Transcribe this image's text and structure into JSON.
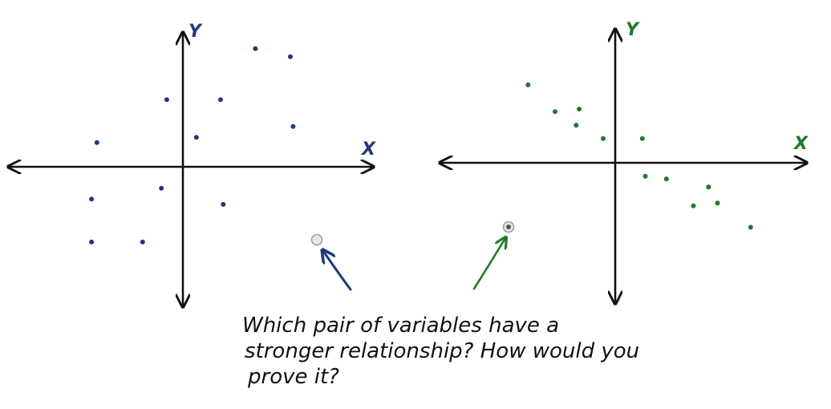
{
  "chart_data": [
    {
      "type": "scatter",
      "xlabel": "X",
      "ylabel": "Y",
      "color": "#1f3a7a",
      "xlim": [
        -6,
        6
      ],
      "ylim": [
        -4.6,
        4.6
      ],
      "points": [
        {
          "x": -3.2,
          "y": 0.9
        },
        {
          "x": -0.6,
          "y": 2.5
        },
        {
          "x": 1.4,
          "y": 2.5
        },
        {
          "x": 2.7,
          "y": 4.4
        },
        {
          "x": 4.0,
          "y": 4.1
        },
        {
          "x": 0.5,
          "y": 1.1
        },
        {
          "x": 4.1,
          "y": 1.5
        },
        {
          "x": -0.8,
          "y": -0.8
        },
        {
          "x": -3.4,
          "y": -1.2
        },
        {
          "x": 1.5,
          "y": -1.4
        },
        {
          "x": -3.4,
          "y": -2.8
        },
        {
          "x": -1.5,
          "y": -2.8
        }
      ]
    },
    {
      "type": "scatter",
      "xlabel": "X",
      "ylabel": "Y",
      "color": "#1e7a2a",
      "xlim": [
        -6,
        6
      ],
      "ylim": [
        -4.6,
        4.6
      ],
      "points": [
        {
          "x": -2.9,
          "y": 2.9
        },
        {
          "x": -2.0,
          "y": 1.9
        },
        {
          "x": -1.2,
          "y": 2.0
        },
        {
          "x": -1.3,
          "y": 1.4
        },
        {
          "x": -0.4,
          "y": 0.9
        },
        {
          "x": 0.9,
          "y": 0.9
        },
        {
          "x": 1.0,
          "y": -0.5
        },
        {
          "x": 1.7,
          "y": -0.6
        },
        {
          "x": 3.1,
          "y": -0.9
        },
        {
          "x": 2.6,
          "y": -1.6
        },
        {
          "x": 3.4,
          "y": -1.5
        },
        {
          "x": 4.5,
          "y": -2.4
        }
      ]
    }
  ],
  "question": {
    "lines": [
      "Which pair of variables have a",
      "stronger relationship? How would you",
      "prove it?"
    ]
  },
  "options": [
    {
      "selected": false,
      "arrow_color": "#1f3a7a"
    },
    {
      "selected": true,
      "arrow_color": "#1e7a2a"
    }
  ]
}
